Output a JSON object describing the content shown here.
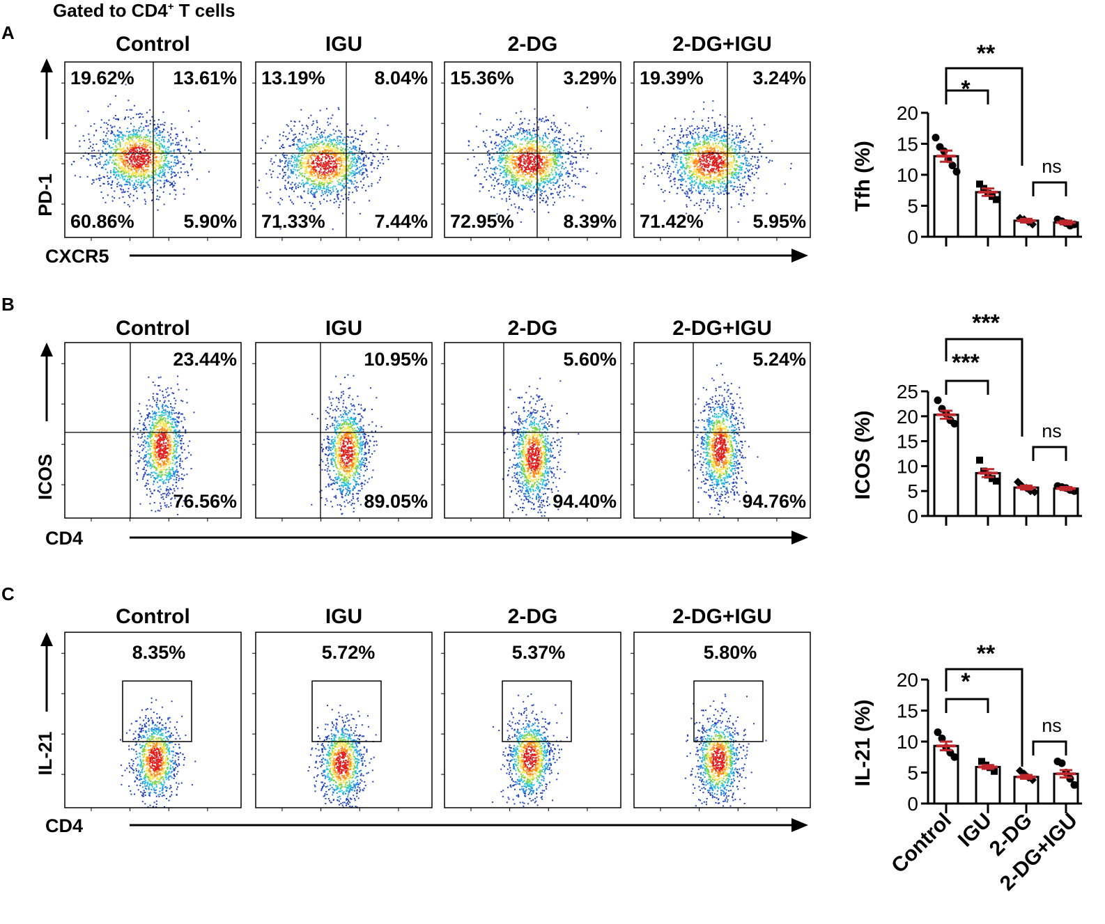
{
  "figure": {
    "gate_title": "Gated to CD4",
    "gate_title_sup": "+",
    "gate_title_tail": " T cells",
    "groups": [
      "Control",
      "IGU",
      "2-DG",
      "2-DG+IGU"
    ],
    "xlabel_categories": [
      "Control",
      "IGU",
      "2-DG",
      "2-DG+IGU"
    ]
  },
  "colors": {
    "bar_fill": "#ffffff",
    "mean_sem": "#c0272d",
    "points": "#000000",
    "density": [
      "#1f3fbf",
      "#1e88e5",
      "#26c6da",
      "#7cd34a",
      "#ffe14d",
      "#ff8c1a",
      "#e01e1e"
    ]
  },
  "chart_data": [
    {
      "type": "scatter",
      "panel": "A",
      "subtype": "flow-cytometry quadrant plots",
      "x_axis_label": "CXCR5",
      "y_axis_label": "PD-1",
      "groups": [
        "Control",
        "IGU",
        "2-DG",
        "2-DG+IGU"
      ],
      "quadrants": [
        {
          "group": "Control",
          "UL": "19.62%",
          "UR": "13.61%",
          "LL": "60.86%",
          "LR": "5.90%"
        },
        {
          "group": "IGU",
          "UL": "13.19%",
          "UR": "8.04%",
          "LL": "71.33%",
          "LR": "7.44%"
        },
        {
          "group": "2-DG",
          "UL": "15.36%",
          "UR": "3.29%",
          "LL": "72.95%",
          "LR": "8.39%"
        },
        {
          "group": "2-DG+IGU",
          "UL": "19.39%",
          "UR": "3.24%",
          "LL": "71.42%",
          "LR": "5.95%"
        }
      ]
    },
    {
      "type": "bar",
      "panel": "A",
      "ylabel": "Tfh (%)",
      "ylim": [
        0,
        20
      ],
      "yticks": [
        0,
        5,
        10,
        15,
        20
      ],
      "categories": [
        "Control",
        "IGU",
        "2-DG",
        "2-DG+IGU"
      ],
      "values": [
        13.0,
        7.2,
        2.6,
        2.3
      ],
      "sem": [
        0.9,
        0.6,
        0.3,
        0.3
      ],
      "points": [
        [
          16,
          14.5,
          13.8,
          12.5,
          11.5,
          10.5
        ],
        [
          8.5,
          7.8,
          7.0,
          6.5,
          6.0
        ],
        [
          3.0,
          2.8,
          2.4,
          2.0
        ],
        [
          2.8,
          2.5,
          2.2,
          1.8,
          2.0
        ]
      ],
      "marker": [
        "circle",
        "square",
        "diamond",
        "circle"
      ],
      "significance": [
        {
          "from": 0,
          "to": 1,
          "label": "*"
        },
        {
          "from": 0,
          "to": 2,
          "label": "**"
        },
        {
          "from": 2,
          "to": 3,
          "label": "ns"
        }
      ]
    },
    {
      "type": "scatter",
      "panel": "B",
      "subtype": "flow-cytometry quadrant plots",
      "x_axis_label": "CD4",
      "y_axis_label": "ICOS",
      "groups": [
        "Control",
        "IGU",
        "2-DG",
        "2-DG+IGU"
      ],
      "quadrants": [
        {
          "group": "Control",
          "UR": "23.44%",
          "LR": "76.56%"
        },
        {
          "group": "IGU",
          "UR": "10.95%",
          "LR": "89.05%"
        },
        {
          "group": "2-DG",
          "UR": "5.60%",
          "LR": "94.40%"
        },
        {
          "group": "2-DG+IGU",
          "UR": "5.24%",
          "LR": "94.76%"
        }
      ]
    },
    {
      "type": "bar",
      "panel": "B",
      "ylabel": "ICOS (%)",
      "ylim": [
        0,
        25
      ],
      "yticks": [
        0,
        5,
        10,
        15,
        20,
        25
      ],
      "categories": [
        "Control",
        "IGU",
        "2-DG",
        "2-DG+IGU"
      ],
      "values": [
        20.3,
        8.6,
        5.7,
        5.5
      ],
      "sem": [
        0.8,
        0.8,
        0.4,
        0.3
      ],
      "points": [
        [
          23.2,
          21.5,
          20.5,
          19.2,
          18.5
        ],
        [
          11.2,
          9.0,
          8.2,
          7.5,
          7.0
        ],
        [
          6.8,
          6.0,
          5.6,
          5.0,
          4.8
        ],
        [
          6.0,
          5.8,
          5.6,
          5.2,
          5.0
        ]
      ],
      "marker": [
        "circle",
        "square",
        "diamond",
        "circle"
      ],
      "significance": [
        {
          "from": 0,
          "to": 1,
          "label": "***"
        },
        {
          "from": 0,
          "to": 2,
          "label": "***"
        },
        {
          "from": 2,
          "to": 3,
          "label": "ns"
        }
      ]
    },
    {
      "type": "scatter",
      "panel": "C",
      "subtype": "flow-cytometry gate plots",
      "x_axis_label": "CD4",
      "y_axis_label": "IL-21",
      "groups": [
        "Control",
        "IGU",
        "2-DG",
        "2-DG+IGU"
      ],
      "gates": [
        {
          "group": "Control",
          "value": "8.35%"
        },
        {
          "group": "IGU",
          "value": "5.72%"
        },
        {
          "group": "2-DG",
          "value": "5.37%"
        },
        {
          "group": "2-DG+IGU",
          "value": "5.80%"
        }
      ]
    },
    {
      "type": "bar",
      "panel": "C",
      "ylabel": "IL-21 (%)",
      "ylim": [
        0,
        20
      ],
      "yticks": [
        0,
        5,
        10,
        15,
        20
      ],
      "categories": [
        "Control",
        "IGU",
        "2-DG",
        "2-DG+IGU"
      ],
      "values": [
        9.3,
        5.9,
        4.3,
        4.8
      ],
      "sem": [
        0.7,
        0.3,
        0.3,
        0.6
      ],
      "points": [
        [
          11.5,
          10.5,
          9.0,
          8.2,
          7.5
        ],
        [
          6.8,
          6.2,
          5.8,
          5.2
        ],
        [
          5.3,
          4.8,
          4.2,
          3.8
        ],
        [
          6.8,
          6.5,
          5.0,
          4.0,
          3.0
        ]
      ],
      "marker": [
        "circle",
        "square",
        "diamond",
        "circle"
      ],
      "significance": [
        {
          "from": 0,
          "to": 1,
          "label": "*"
        },
        {
          "from": 0,
          "to": 2,
          "label": "**"
        },
        {
          "from": 2,
          "to": 3,
          "label": "ns"
        }
      ]
    }
  ]
}
